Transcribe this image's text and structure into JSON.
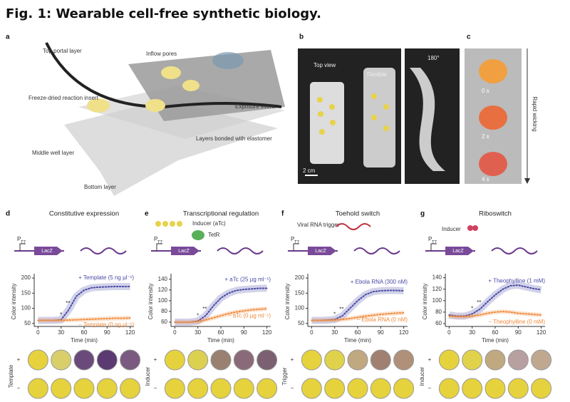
{
  "title": "Fig. 1: Wearable cell-free synthetic biology.",
  "panel_labels": [
    "a",
    "b",
    "c",
    "d",
    "e",
    "f",
    "g"
  ],
  "panel_a": {
    "labels": [
      "Top portal layer",
      "Inflow pores",
      "Freeze-dried reaction insert",
      "Exposure event",
      "Layers bonded with elastomer",
      "Middle well layer",
      "Bottom layer"
    ]
  },
  "panel_b": {
    "labels": [
      "Top view",
      "Flexible",
      "180°",
      "2 cm"
    ]
  },
  "panel_c": {
    "times": [
      "0 s",
      "2 s",
      "4 s"
    ],
    "label": "Rapid wicking"
  },
  "schematics": {
    "promoter": "P",
    "promoter_sub": "T7",
    "gene": "LacZ",
    "inducer_atc": "Inducer (aTc)",
    "tetr": "TetR",
    "trigger": "Viral RNA trigger",
    "inducer": "Inducer"
  },
  "wells": {
    "rows": [
      "Template",
      "Inducer",
      "Trigger",
      "Inducer"
    ],
    "plus": "+",
    "minus": "−"
  },
  "chart_data": [
    {
      "type": "line",
      "title": "Constitutive expression",
      "x_label": "Time (min)",
      "y_label": "Color intensity",
      "x": [
        0,
        10,
        20,
        30,
        40,
        50,
        60,
        70,
        80,
        90,
        100,
        110,
        120
      ],
      "xlim": [
        -5,
        125
      ],
      "xticks": [
        0,
        30,
        60,
        90,
        120
      ],
      "ylim": [
        40,
        205
      ],
      "yticks": [
        50,
        100,
        150,
        200
      ],
      "annotations": [
        "*",
        "**"
      ],
      "series": [
        {
          "name": "+ Template (5 ng µl⁻¹)",
          "color": "#4a4aa6",
          "values": [
            60,
            60,
            60,
            62,
            95,
            140,
            160,
            168,
            170,
            171,
            172,
            172,
            172
          ]
        },
        {
          "name": "− Template (0 ng µl⁻¹)",
          "color": "#f08a3c",
          "values": [
            60,
            60,
            60,
            60,
            61,
            62,
            63,
            64,
            65,
            66,
            67,
            67,
            68
          ]
        }
      ]
    },
    {
      "type": "line",
      "title": "Transcriptional regulation",
      "x_label": "Time (min)",
      "y_label": "Color intensity",
      "x": [
        0,
        10,
        20,
        30,
        40,
        50,
        60,
        70,
        80,
        90,
        100,
        110,
        120
      ],
      "xlim": [
        -5,
        125
      ],
      "xticks": [
        0,
        30,
        60,
        90,
        120
      ],
      "ylim": [
        52,
        145
      ],
      "yticks": [
        60,
        80,
        100,
        120,
        140
      ],
      "annotations": [
        "*",
        "**"
      ],
      "series": [
        {
          "name": "+ aTc (25 µg ml⁻¹)",
          "color": "#4a4aa6",
          "values": [
            60,
            60,
            60,
            62,
            72,
            90,
            105,
            114,
            119,
            121,
            122,
            123,
            123
          ]
        },
        {
          "name": "− aTc (0 µg ml⁻¹)",
          "color": "#f08a3c",
          "values": [
            60,
            60,
            60,
            61,
            64,
            68,
            72,
            76,
            79,
            81,
            83,
            84,
            85
          ]
        }
      ]
    },
    {
      "type": "line",
      "title": "Toehold switch",
      "x_label": "Time (min)",
      "y_label": "Color intensity",
      "x": [
        0,
        10,
        20,
        30,
        40,
        50,
        60,
        70,
        80,
        90,
        100,
        110,
        120
      ],
      "xlim": [
        -5,
        125
      ],
      "xticks": [
        0,
        30,
        60,
        90,
        120
      ],
      "ylim": [
        40,
        205
      ],
      "yticks": [
        50,
        100,
        150,
        200
      ],
      "annotations": [
        "*",
        "**"
      ],
      "series": [
        {
          "name": "+ Ebola RNA (300 nM)",
          "color": "#4a4aa6",
          "values": [
            60,
            60,
            61,
            63,
            75,
            100,
            125,
            145,
            155,
            158,
            159,
            159,
            158
          ]
        },
        {
          "name": "− Ebola RNA (0 nM)",
          "color": "#f08a3c",
          "values": [
            60,
            60,
            60,
            61,
            63,
            66,
            70,
            74,
            77,
            80,
            82,
            84,
            85
          ]
        }
      ]
    },
    {
      "type": "line",
      "title": "Riboswitch",
      "x_label": "Time (min)",
      "y_label": "Color intensity",
      "x": [
        0,
        10,
        20,
        30,
        40,
        50,
        60,
        70,
        80,
        90,
        100,
        110,
        120
      ],
      "xlim": [
        -5,
        125
      ],
      "xticks": [
        0,
        30,
        60,
        90,
        120
      ],
      "ylim": [
        55,
        142
      ],
      "yticks": [
        60,
        80,
        100,
        120,
        140
      ],
      "annotations": [
        "*",
        "**"
      ],
      "series": [
        {
          "name": "+ Theophylline (1 mM)",
          "color": "#4a4aa6",
          "values": [
            75,
            73,
            73,
            77,
            85,
            98,
            110,
            120,
            126,
            127,
            124,
            121,
            119
          ]
        },
        {
          "name": "− Theophylline (0 mM)",
          "color": "#f08a3c",
          "values": [
            73,
            72,
            72,
            73,
            75,
            78,
            80,
            81,
            80,
            78,
            77,
            76,
            75
          ]
        }
      ]
    }
  ]
}
